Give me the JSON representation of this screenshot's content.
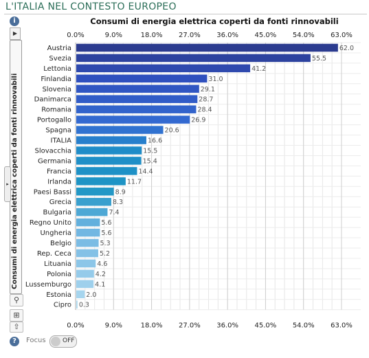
{
  "header": {
    "title": "L'ITALIA NEL CONTESTO EUROPEO"
  },
  "sidebar": {
    "tab_label": "Consumi di energia elettrica coperti da fonti rinnovabili",
    "info": "i",
    "help": "?"
  },
  "focus": {
    "label": "Focus",
    "state": "OFF"
  },
  "icons": [
    "info-icon",
    "play-arrow-icon",
    "magnify-icon",
    "crop-icon",
    "export-icon",
    "print-icon",
    "help-icon"
  ],
  "colors": {
    "header": "#2a6d57",
    "bar_dark": "#2b3b8f",
    "bar_mid": "#2f6fd0",
    "bar_teal": "#1f93c4",
    "bar_light": "#9fd2ea",
    "grid": "#d8d8d8"
  },
  "chart_data": {
    "type": "bar",
    "orientation": "horizontal",
    "title": "Consumi di energia elettrica coperti da fonti rinnovabili",
    "xlim": [
      0,
      63
    ],
    "ticks": [
      "0.0%",
      "9.0%",
      "18.0%",
      "27.0%",
      "36.0%",
      "45.0%",
      "54.0%",
      "63.0%"
    ],
    "tick_values": [
      0,
      9,
      18,
      27,
      36,
      45,
      54,
      63
    ],
    "grid": true,
    "categories": [
      "Austria",
      "Svezia",
      "Lettonia",
      "Finlandia",
      "Slovenia",
      "Danimarca",
      "Romania",
      "Portogallo",
      "Spagna",
      "ITALIA",
      "Slovacchia",
      "Germania",
      "Francia",
      "Irlanda",
      "Paesi Bassi",
      "Grecia",
      "Bulgaria",
      "Regno Unito",
      "Ungheria",
      "Belgio",
      "Rep. Ceca",
      "Lituania",
      "Polonia",
      "Lussemburgo",
      "Estonia",
      "Cipro"
    ],
    "values": [
      62.0,
      55.5,
      41.2,
      31.0,
      29.1,
      28.7,
      28.4,
      26.9,
      20.6,
      16.6,
      15.5,
      15.4,
      14.4,
      11.7,
      8.9,
      8.3,
      7.4,
      5.6,
      5.6,
      5.3,
      5.2,
      4.6,
      4.2,
      4.1,
      2.0,
      0.3
    ],
    "value_labels": [
      "62.0",
      "55.5",
      "41.2",
      "31.0",
      "29.1",
      "28.7",
      "28.4",
      "26.9",
      "20.6",
      "16.6",
      "15.5",
      "15.4",
      "14.4",
      "11.7",
      "8.9",
      "8.3",
      "7.4",
      "5.6",
      "5.6",
      "5.3",
      "5.2",
      "4.6",
      "4.2",
      "4.1",
      "2.0",
      "0.3"
    ]
  }
}
